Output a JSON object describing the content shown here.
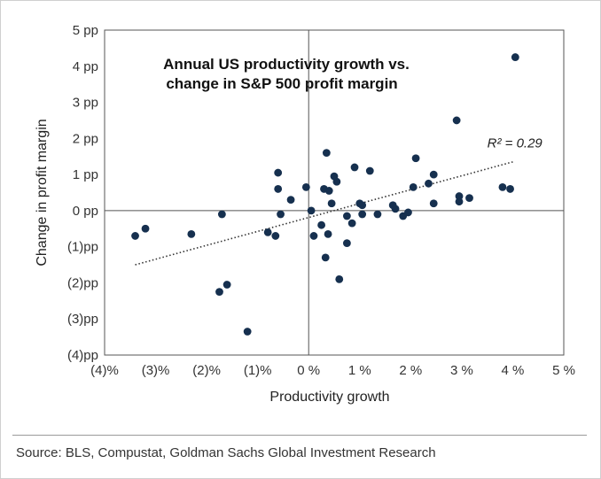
{
  "chart_data": {
    "type": "scatter",
    "title_lines": [
      "Annual US productivity growth vs.",
      "change in S&P 500 profit margin"
    ],
    "xlabel": "Productivity growth",
    "ylabel": "Change in profit margin",
    "xlim": [
      -4,
      5
    ],
    "ylim": [
      -4,
      5
    ],
    "x_ticks": [
      {
        "value": -4,
        "label": "(4)%"
      },
      {
        "value": -3,
        "label": "(3)%"
      },
      {
        "value": -2,
        "label": "(2)%"
      },
      {
        "value": -1,
        "label": "(1)%"
      },
      {
        "value": 0,
        "label": "0 %"
      },
      {
        "value": 1,
        "label": "1 %"
      },
      {
        "value": 2,
        "label": "2 %"
      },
      {
        "value": 3,
        "label": "3 %"
      },
      {
        "value": 4,
        "label": "4 %"
      },
      {
        "value": 5,
        "label": "5 %"
      }
    ],
    "y_ticks": [
      {
        "value": 5,
        "label": "5 pp"
      },
      {
        "value": 4,
        "label": "4 pp"
      },
      {
        "value": 3,
        "label": "3 pp"
      },
      {
        "value": 2,
        "label": "2 pp"
      },
      {
        "value": 1,
        "label": "1 pp"
      },
      {
        "value": 0,
        "label": "0 pp"
      },
      {
        "value": -1,
        "label": "(1)pp"
      },
      {
        "value": -2,
        "label": "(2)pp"
      },
      {
        "value": -3,
        "label": "(3)pp"
      },
      {
        "value": -4,
        "label": "(4)pp"
      }
    ],
    "grid": false,
    "points": [
      {
        "x": -3.4,
        "y": -0.7
      },
      {
        "x": -3.2,
        "y": -0.5
      },
      {
        "x": -2.3,
        "y": -0.65
      },
      {
        "x": -1.6,
        "y": -2.05
      },
      {
        "x": -1.75,
        "y": -2.25
      },
      {
        "x": -1.7,
        "y": -0.1
      },
      {
        "x": -1.2,
        "y": -3.35
      },
      {
        "x": -0.8,
        "y": -0.6
      },
      {
        "x": -0.65,
        "y": -0.7
      },
      {
        "x": -0.55,
        "y": -0.1
      },
      {
        "x": -0.6,
        "y": 1.05
      },
      {
        "x": -0.6,
        "y": 0.6
      },
      {
        "x": -0.35,
        "y": 0.3
      },
      {
        "x": -0.05,
        "y": 0.65
      },
      {
        "x": 0.1,
        "y": -0.7
      },
      {
        "x": 0.05,
        "y": 0.0
      },
      {
        "x": 0.25,
        "y": -0.4
      },
      {
        "x": 0.3,
        "y": 0.6
      },
      {
        "x": 0.4,
        "y": 0.55
      },
      {
        "x": 0.35,
        "y": 1.6
      },
      {
        "x": 0.45,
        "y": 0.2
      },
      {
        "x": 0.5,
        "y": 0.95
      },
      {
        "x": 0.55,
        "y": 0.8
      },
      {
        "x": 0.38,
        "y": -0.65
      },
      {
        "x": 0.33,
        "y": -1.3
      },
      {
        "x": 0.6,
        "y": -1.9
      },
      {
        "x": 0.75,
        "y": -0.15
      },
      {
        "x": 0.75,
        "y": -0.9
      },
      {
        "x": 0.85,
        "y": -0.35
      },
      {
        "x": 0.9,
        "y": 1.2
      },
      {
        "x": 1.0,
        "y": 0.2
      },
      {
        "x": 1.05,
        "y": -0.1
      },
      {
        "x": 1.05,
        "y": 0.15
      },
      {
        "x": 1.2,
        "y": 1.1
      },
      {
        "x": 1.35,
        "y": -0.1
      },
      {
        "x": 1.65,
        "y": 0.15
      },
      {
        "x": 1.7,
        "y": 0.05
      },
      {
        "x": 1.85,
        "y": -0.15
      },
      {
        "x": 1.95,
        "y": -0.05
      },
      {
        "x": 2.05,
        "y": 0.65
      },
      {
        "x": 2.1,
        "y": 1.45
      },
      {
        "x": 2.35,
        "y": 0.75
      },
      {
        "x": 2.45,
        "y": 1.0
      },
      {
        "x": 2.45,
        "y": 0.2
      },
      {
        "x": 2.9,
        "y": 2.5
      },
      {
        "x": 2.95,
        "y": 0.25
      },
      {
        "x": 2.95,
        "y": 0.4
      },
      {
        "x": 3.15,
        "y": 0.35
      },
      {
        "x": 3.8,
        "y": 0.65
      },
      {
        "x": 3.95,
        "y": 0.6
      },
      {
        "x": 4.05,
        "y": 4.25
      }
    ],
    "trendline": {
      "x": [
        -3.4,
        4.0
      ],
      "y": [
        -1.5,
        1.35
      ]
    },
    "annotation": "R² = 0.29",
    "annotation_at": {
      "x": 3.5,
      "y": 1.75
    },
    "colors": {
      "points": "#16304f",
      "axes": "#555555",
      "trend": "#333333"
    }
  },
  "footer": {
    "source": "Source: BLS, Compustat, Goldman Sachs Global Investment Research"
  }
}
